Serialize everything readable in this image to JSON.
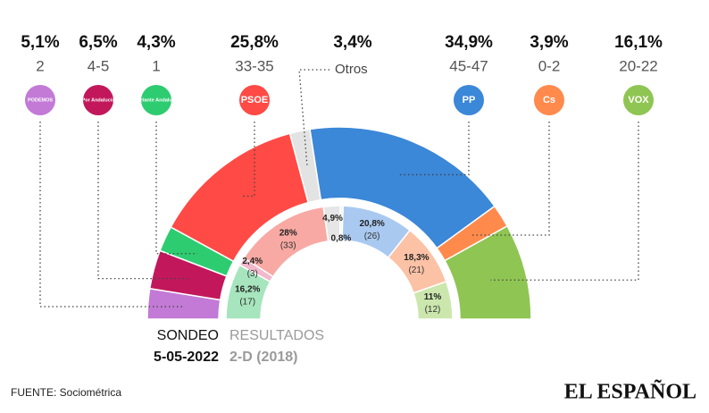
{
  "chart_data": {
    "type": "semicircle",
    "source": "FUENTE: Sociométrica",
    "brand": "EL ESPAÑOL",
    "series": [
      {
        "name": "SONDEO",
        "date": "5-05-2022",
        "values": [
          5.1,
          6.5,
          4.3,
          25.8,
          3.4,
          34.9,
          3.9,
          16.1
        ],
        "value_labels": [
          "5,1%",
          "6,5%",
          "4,3%",
          "25,8%",
          "3,4%",
          "34,9%",
          "3,9%",
          "16,1%"
        ],
        "seats": [
          "2",
          "4-5",
          "1",
          "33-35",
          null,
          "45-47",
          "0-2",
          "20-22"
        ],
        "logos": [
          "PODEMOS",
          "Por Andalucía",
          "Adelante Andalucía",
          "PSOE",
          "Otros",
          "PP",
          "Cs",
          "VOX"
        ],
        "colors": [
          "#c27ad6",
          "#c2185b",
          "#2ecc71",
          "#ff4a45",
          "#e3e3e3",
          "#3b87d8",
          "#ff8a4c",
          "#8fc552"
        ]
      },
      {
        "name": "RESULTADOS",
        "date": "2-D (2018)",
        "values": [
          16.2,
          2.4,
          28,
          4.9,
          0.8,
          20.8,
          18.3,
          11
        ],
        "value_labels": [
          "16,2%",
          "2,4%",
          "28%",
          "4,9%",
          "0,8%",
          "20,8%",
          "18,3%",
          "11%"
        ],
        "seats": [
          "(17)",
          "(3)",
          "(33)",
          null,
          null,
          "(26)",
          "(21)",
          "(12)"
        ],
        "colors": [
          "#a6e5bd",
          "#f2b8cc",
          "#f9a9a3",
          "#e6e6e6",
          "#f1f1f1",
          "#a9c9f1",
          "#fcc2a6",
          "#cbe7ad"
        ]
      }
    ]
  }
}
